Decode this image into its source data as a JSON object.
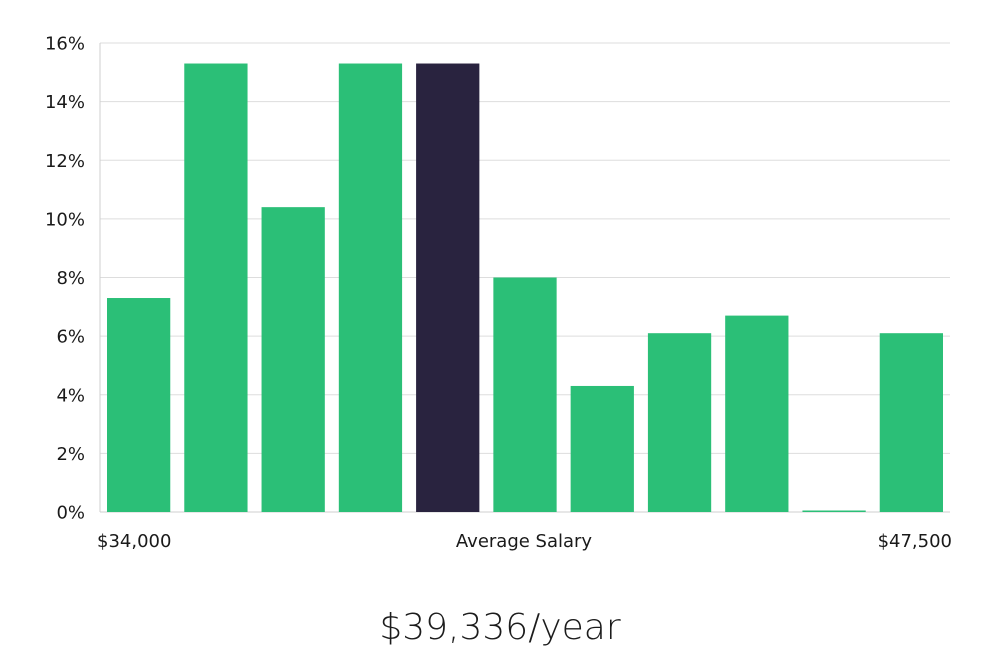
{
  "colors": {
    "bar": "#2bbf77",
    "highlight": "#29233f",
    "grid": "#dddddd",
    "text": "#1a1a1a"
  },
  "chart_data": {
    "type": "bar",
    "bins": 11,
    "values": [
      7.3,
      15.3,
      10.4,
      15.3,
      15.3,
      8.0,
      4.3,
      6.1,
      6.7,
      0.0,
      6.1
    ],
    "highlight_index": 4,
    "ylim": [
      0,
      16
    ],
    "y_ticks": [
      0,
      2,
      4,
      6,
      8,
      10,
      12,
      14,
      16
    ],
    "y_tick_format": "percent",
    "grid": true,
    "x_labels": {
      "left": "$34,000",
      "center": "Average Salary",
      "right": "$47,500"
    }
  },
  "salary_display": "$39,336/year"
}
